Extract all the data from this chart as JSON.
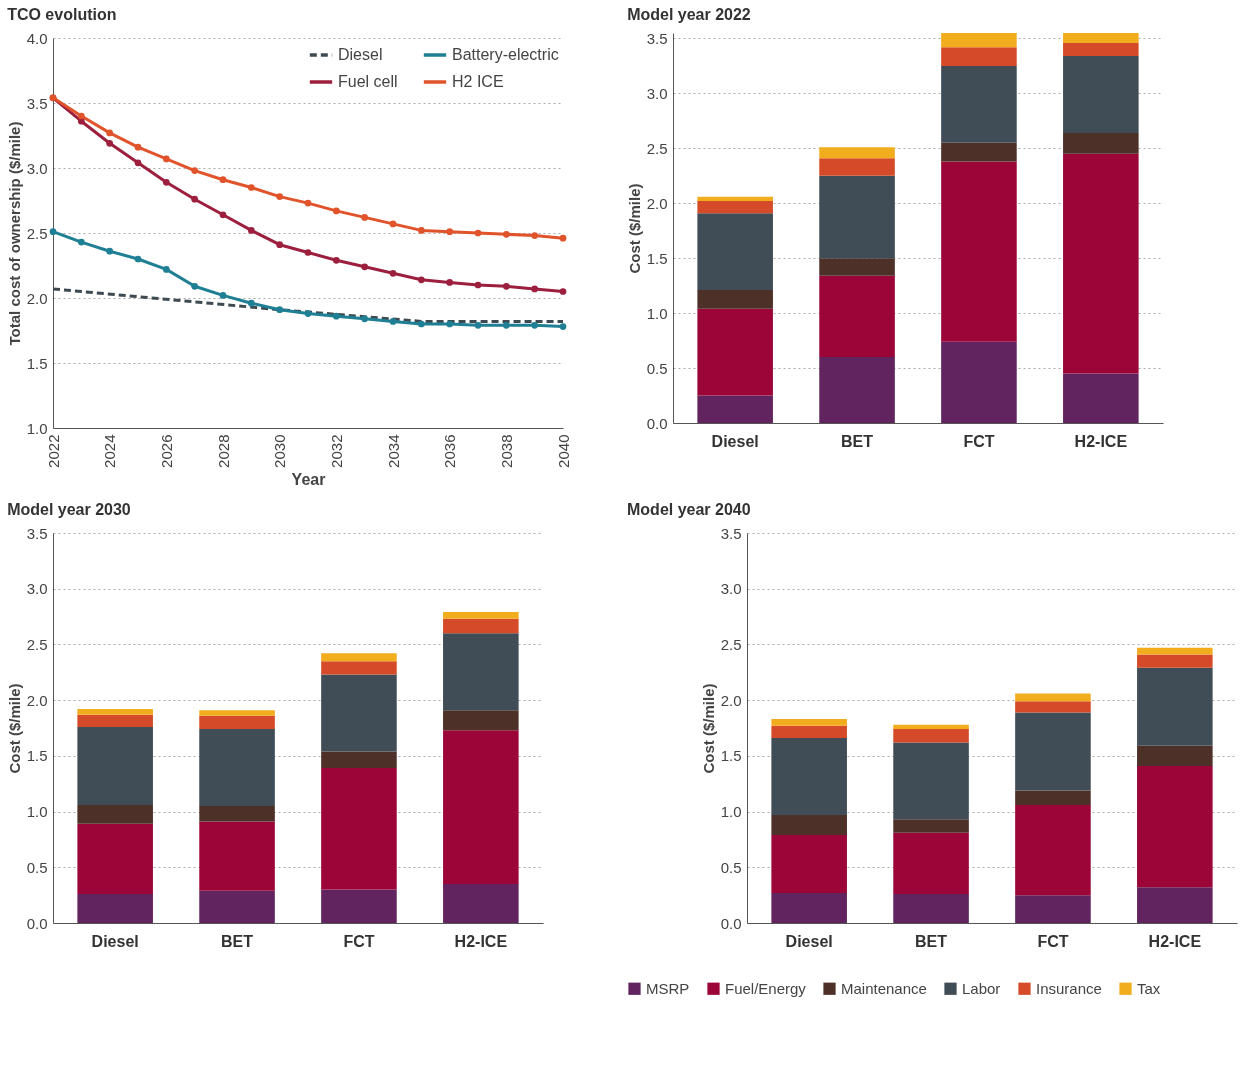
{
  "chart_data": [
    {
      "type": "line",
      "title": "TCO evolution",
      "xlabel": "Year",
      "ylabel": "Total cost of ownership ($/mile)",
      "x": [
        2022,
        2023,
        2024,
        2025,
        2026,
        2027,
        2028,
        2029,
        2030,
        2031,
        2032,
        2033,
        2034,
        2035,
        2036,
        2037,
        2038,
        2039,
        2040
      ],
      "xlim": [
        2022,
        2040
      ],
      "xticks": [
        2022,
        2024,
        2026,
        2028,
        2030,
        2032,
        2034,
        2036,
        2038,
        2040
      ],
      "ylim": [
        1,
        4
      ],
      "yticks": [
        {
          "value": 1,
          "label": "1.0"
        },
        {
          "value": 1.5,
          "label": "1.5"
        },
        {
          "value": 2,
          "label": "2.0"
        },
        {
          "value": 2.5,
          "label": "2.5"
        },
        {
          "value": 3,
          "label": "3.0"
        },
        {
          "value": 3.5,
          "label": "3.5"
        },
        {
          "value": 4,
          "label": "4.0"
        }
      ],
      "grid": "y",
      "legend": "top right",
      "marker": "circle",
      "series": [
        {
          "name": "Diesel",
          "color": "#3d4a52",
          "line_style": "dashed",
          "marker": "none",
          "x": [
            2022,
            2030,
            2035,
            2040
          ],
          "values": [
            2.07,
            1.91,
            1.82,
            1.82
          ]
        },
        {
          "name": "Fuel cell",
          "color": "#9c1f3e",
          "line_style": "solid",
          "values": [
            3.54,
            3.36,
            3.19,
            3.04,
            2.89,
            2.76,
            2.64,
            2.52,
            2.41,
            2.35,
            2.29,
            2.24,
            2.19,
            2.14,
            2.12,
            2.1,
            2.09,
            2.07,
            2.05
          ]
        },
        {
          "name": "Battery-electric",
          "color": "#1f7f94",
          "line_style": "solid",
          "values": [
            2.51,
            2.43,
            2.36,
            2.3,
            2.22,
            2.09,
            2.02,
            1.96,
            1.91,
            1.88,
            1.86,
            1.84,
            1.82,
            1.8,
            1.8,
            1.79,
            1.79,
            1.79,
            1.78
          ]
        },
        {
          "name": "H2 ICE",
          "color": "#e0532b",
          "line_style": "solid",
          "values": [
            3.54,
            3.4,
            3.27,
            3.16,
            3.07,
            2.98,
            2.91,
            2.85,
            2.78,
            2.73,
            2.67,
            2.62,
            2.57,
            2.52,
            2.51,
            2.5,
            2.49,
            2.48,
            2.46
          ]
        }
      ]
    },
    {
      "type": "bar",
      "title": "Model year 2022",
      "ylabel": "Cost ($/mile)",
      "categories": [
        "Diesel",
        "BET",
        "FCT",
        "H2-ICE"
      ],
      "stacked": true,
      "grid": "y",
      "legend": false,
      "ylim": [
        0,
        3.55
      ],
      "yticks": [
        {
          "value": 0,
          "label": "0.0"
        },
        {
          "value": 0.5,
          "label": "0.5"
        },
        {
          "value": 1,
          "label": "1.0"
        },
        {
          "value": 1.5,
          "label": "1.5"
        },
        {
          "value": 2,
          "label": "2.0"
        },
        {
          "value": 2.5,
          "label": "2.5"
        },
        {
          "value": 3,
          "label": "3.0"
        },
        {
          "value": 3.5,
          "label": "3.5"
        }
      ],
      "series": [
        {
          "color": "#62245f",
          "values": [
            0.25,
            0.6,
            0.74,
            0.45
          ]
        },
        {
          "color": "#9c0538",
          "values": [
            0.79,
            0.74,
            1.64,
            2.0
          ]
        },
        {
          "color": "#4d3028",
          "values": [
            0.17,
            0.16,
            0.17,
            0.19
          ]
        },
        {
          "color": "#404d56",
          "values": [
            0.7,
            0.75,
            0.7,
            0.7
          ]
        },
        {
          "color": "#d54b2a",
          "values": [
            0.11,
            0.16,
            0.17,
            0.12
          ]
        },
        {
          "color": "#f2ad1f",
          "values": [
            0.04,
            0.1,
            0.13,
            0.09
          ]
        }
      ]
    },
    {
      "type": "bar",
      "title": "Model year 2030",
      "ylabel": "Cost ($/mile)",
      "categories": [
        "Diesel",
        "BET",
        "FCT",
        "H2-ICE"
      ],
      "stacked": true,
      "grid": "y",
      "legend": false,
      "ylim": [
        0,
        3.5
      ],
      "yticks": [
        {
          "value": 0,
          "label": "0.0"
        },
        {
          "value": 0.5,
          "label": "0.5"
        },
        {
          "value": 1,
          "label": "1.0"
        },
        {
          "value": 1.5,
          "label": "1.5"
        },
        {
          "value": 2,
          "label": "2.0"
        },
        {
          "value": 2.5,
          "label": "2.5"
        },
        {
          "value": 3,
          "label": "3.0"
        },
        {
          "value": 3.5,
          "label": "3.5"
        }
      ],
      "series": [
        {
          "color": "#62245f",
          "values": [
            0.26,
            0.29,
            0.3,
            0.35
          ]
        },
        {
          "color": "#9c0538",
          "values": [
            0.63,
            0.62,
            1.09,
            1.38
          ]
        },
        {
          "color": "#4d3028",
          "values": [
            0.17,
            0.14,
            0.15,
            0.18
          ]
        },
        {
          "color": "#404d56",
          "values": [
            0.7,
            0.69,
            0.69,
            0.69
          ]
        },
        {
          "color": "#d54b2a",
          "values": [
            0.11,
            0.12,
            0.12,
            0.13
          ]
        },
        {
          "color": "#f2ad1f",
          "values": [
            0.05,
            0.05,
            0.07,
            0.06
          ]
        }
      ]
    },
    {
      "type": "bar",
      "title": "Model year 2040",
      "ylabel": "Cost ($/mile)",
      "categories": [
        "Diesel",
        "BET",
        "FCT",
        "H2-ICE"
      ],
      "stacked": true,
      "grid": "y",
      "legend": "bottom",
      "ylim": [
        0,
        3.5
      ],
      "yticks": [
        {
          "value": 0,
          "label": "0.0"
        },
        {
          "value": 0.5,
          "label": "0.5"
        },
        {
          "value": 1,
          "label": "1.0"
        },
        {
          "value": 1.5,
          "label": "1.5"
        },
        {
          "value": 2,
          "label": "2.0"
        },
        {
          "value": 2.5,
          "label": "2.5"
        },
        {
          "value": 3,
          "label": "3.0"
        },
        {
          "value": 3.5,
          "label": "3.5"
        }
      ],
      "series": [
        {
          "name": "MSRP",
          "color": "#62245f",
          "values": [
            0.27,
            0.26,
            0.25,
            0.32
          ]
        },
        {
          "name": "Fuel/Energy",
          "color": "#9c0538",
          "values": [
            0.52,
            0.55,
            0.81,
            1.09
          ]
        },
        {
          "name": "Maintenance",
          "color": "#4d3028",
          "values": [
            0.18,
            0.12,
            0.13,
            0.18
          ]
        },
        {
          "name": "Labor",
          "color": "#404d56",
          "values": [
            0.69,
            0.69,
            0.7,
            0.7
          ]
        },
        {
          "name": "Insurance",
          "color": "#d54b2a",
          "values": [
            0.11,
            0.12,
            0.1,
            0.12
          ]
        },
        {
          "name": "Tax",
          "color": "#f2ad1f",
          "values": [
            0.06,
            0.04,
            0.07,
            0.06
          ]
        }
      ]
    }
  ]
}
